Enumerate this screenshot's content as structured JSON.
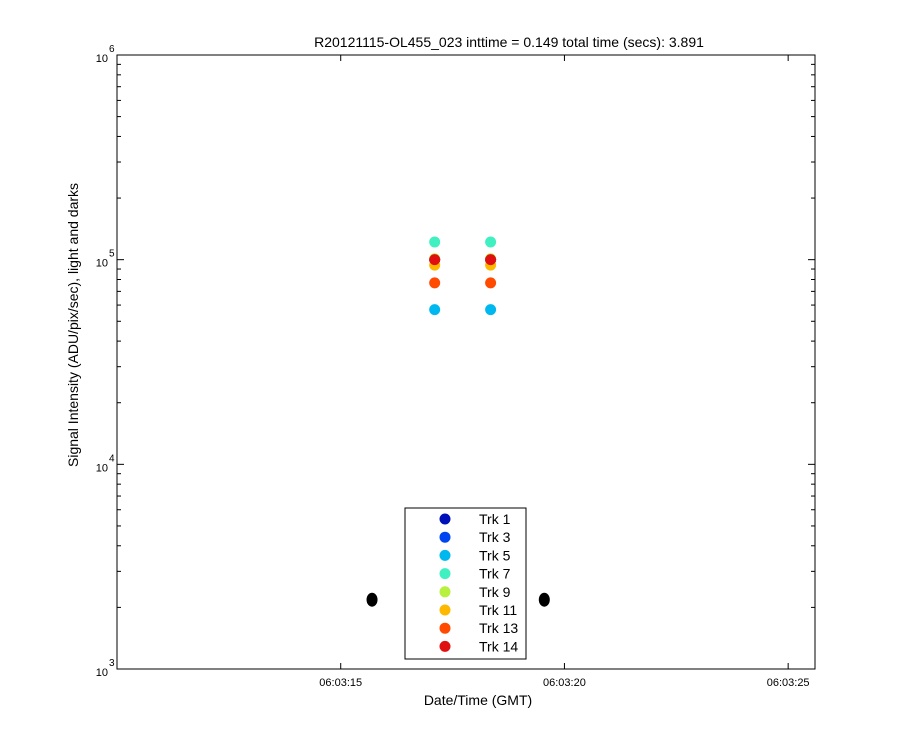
{
  "chart_data": {
    "type": "scatter",
    "title": "R20121115-OL455_023 inttime = 0.149 total time (secs): 3.891",
    "xlabel": "Date/Time (GMT)",
    "ylabel": "Signal Intensity (ADU/pix/sec), light and darks",
    "y_scale": "log",
    "xlim": [
      "06:03:10.0",
      "06:03:25.6"
    ],
    "ylim": [
      1000,
      1000000
    ],
    "x_ticks": [
      "06:03:15",
      "06:03:20",
      "06:03:25"
    ],
    "y_ticks": [
      {
        "base": "10",
        "exp": "3",
        "value": 1000
      },
      {
        "base": "10",
        "exp": "4",
        "value": 10000
      },
      {
        "base": "10",
        "exp": "5",
        "value": 100000
      },
      {
        "base": "10",
        "exp": "6",
        "value": 1000000
      }
    ],
    "grid": false,
    "legend_position": "bottom-center",
    "series": [
      {
        "name": "Trk 1",
        "color": "#0010b8",
        "points": [
          {
            "x": "06:03:17.1",
            "y": 100000
          },
          {
            "x": "06:03:18.35",
            "y": 100000
          }
        ]
      },
      {
        "name": "Trk 3",
        "color": "#0046f0",
        "points": [
          {
            "x": "06:03:17.1",
            "y": 100000
          },
          {
            "x": "06:03:18.35",
            "y": 100000
          }
        ]
      },
      {
        "name": "Trk 5",
        "color": "#00b8f0",
        "points": [
          {
            "x": "06:03:17.1",
            "y": 57000
          },
          {
            "x": "06:03:18.35",
            "y": 57000
          }
        ]
      },
      {
        "name": "Trk 7",
        "color": "#40f0c0",
        "points": [
          {
            "x": "06:03:17.1",
            "y": 122000
          },
          {
            "x": "06:03:18.35",
            "y": 122000
          }
        ]
      },
      {
        "name": "Trk 9",
        "color": "#b8f040",
        "points": [
          {
            "x": "06:03:17.1",
            "y": 101000
          },
          {
            "x": "06:03:18.35",
            "y": 101000
          }
        ]
      },
      {
        "name": "Trk 11",
        "color": "#ffb800",
        "points": [
          {
            "x": "06:03:17.1",
            "y": 94000
          },
          {
            "x": "06:03:18.35",
            "y": 94000
          }
        ]
      },
      {
        "name": "Trk 13",
        "color": "#ff4a00",
        "points": [
          {
            "x": "06:03:17.1",
            "y": 77000
          },
          {
            "x": "06:03:18.35",
            "y": 77000
          }
        ]
      },
      {
        "name": "Trk 14",
        "color": "#e01010",
        "points": [
          {
            "x": "06:03:17.1",
            "y": 100000
          },
          {
            "x": "06:03:18.35",
            "y": 100000
          }
        ]
      }
    ],
    "darks": {
      "color": "#000000",
      "points": [
        {
          "x": "06:03:15.7",
          "y": 2180
        },
        {
          "x": "06:03:19.55",
          "y": 2180
        }
      ]
    }
  }
}
